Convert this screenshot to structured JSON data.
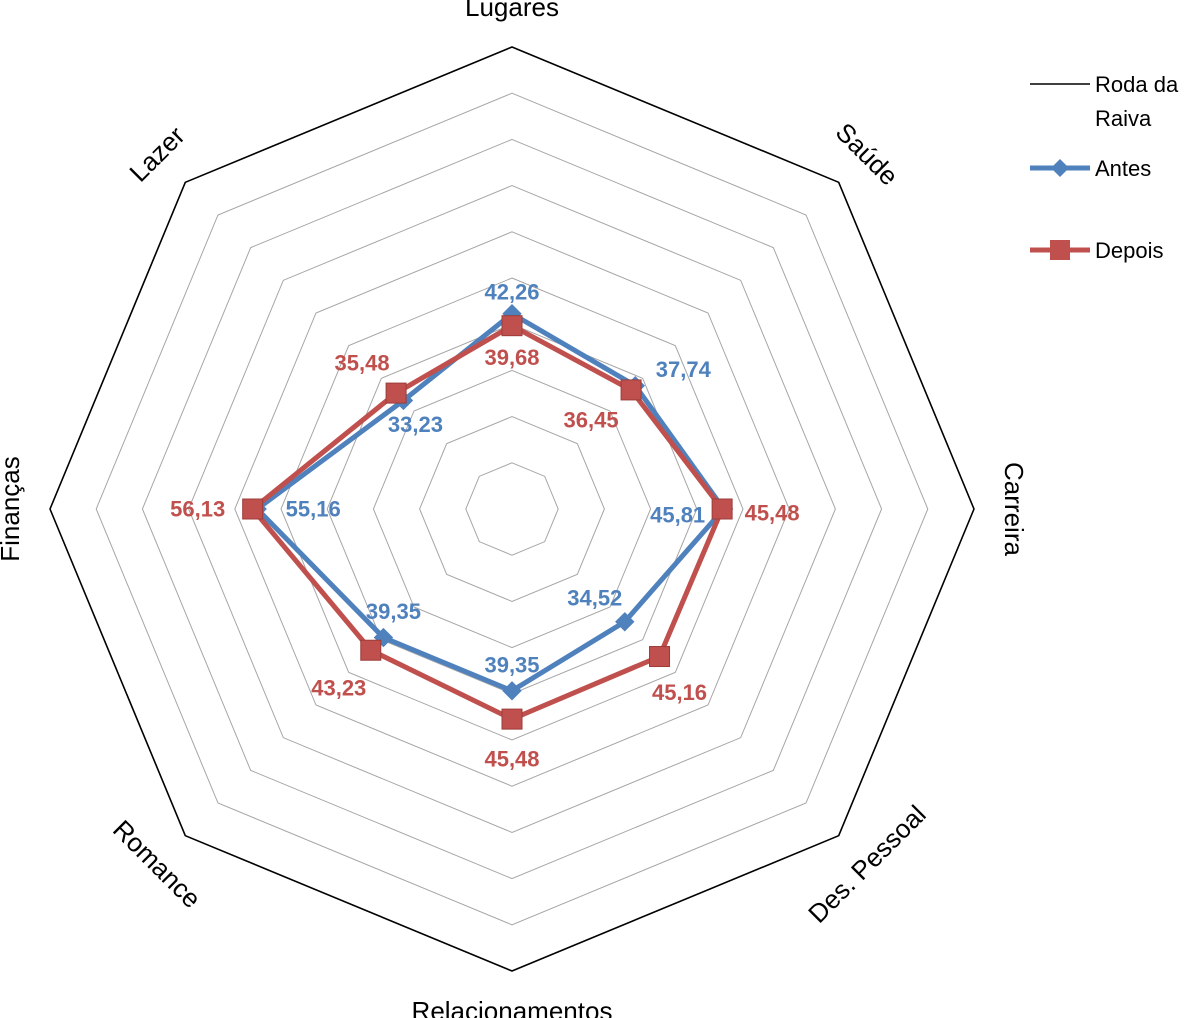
{
  "chart_data": {
    "type": "radar",
    "categories": [
      "Lugares",
      "Saúde",
      "Carreira",
      "Des. Pessoal",
      "Relacionamentos",
      "Romance",
      "Finanças",
      "Lazer"
    ],
    "rlim": [
      0,
      100
    ],
    "grid": true,
    "legend_position": "top-right",
    "legend": [
      {
        "name": "Roda da Raiva",
        "name_lines": [
          "Roda da",
          "Raiva"
        ],
        "color": "#000000",
        "marker": "none"
      },
      {
        "name": "Antes",
        "color": "#4F81BD",
        "marker": "diamond"
      },
      {
        "name": "Depois",
        "color": "#C0504D",
        "marker": "square"
      }
    ],
    "series": [
      {
        "name": "Roda da Raiva",
        "values": [
          100,
          100,
          100,
          100,
          100,
          100,
          100,
          100
        ],
        "color": "#000000"
      },
      {
        "name": "Antes",
        "values": [
          42.26,
          37.74,
          45.81,
          34.52,
          39.35,
          39.35,
          55.16,
          33.23
        ],
        "labels": [
          "42,26",
          "37,74",
          "45,81",
          "34,52",
          "39,35",
          "39,35",
          "55,16",
          "33,23"
        ],
        "color": "#4F81BD"
      },
      {
        "name": "Depois",
        "values": [
          39.68,
          36.45,
          45.48,
          45.16,
          45.48,
          43.23,
          56.13,
          35.48
        ],
        "labels": [
          "39,68",
          "36,45",
          "45,48",
          "45,16",
          "45,48",
          "43,23",
          "56,13",
          "35,48"
        ],
        "color": "#C0504D"
      }
    ]
  }
}
